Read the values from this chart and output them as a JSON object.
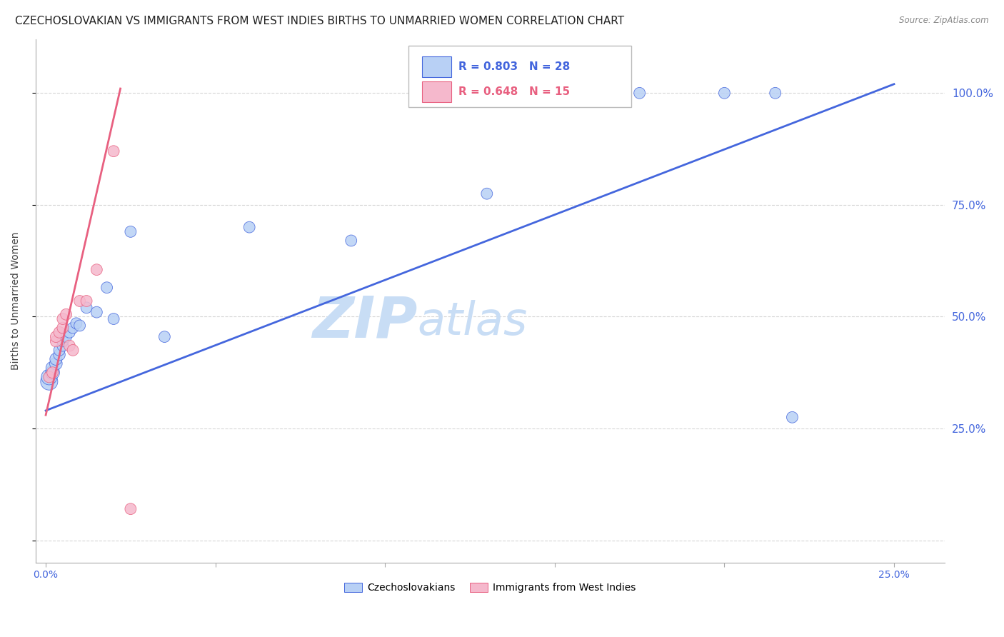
{
  "title": "CZECHOSLOVAKIAN VS IMMIGRANTS FROM WEST INDIES BIRTHS TO UNMARRIED WOMEN CORRELATION CHART",
  "source": "Source: ZipAtlas.com",
  "ylabel": "Births to Unmarried Women",
  "x_ticks": [
    0.0,
    0.05,
    0.1,
    0.15,
    0.2,
    0.25
  ],
  "x_tick_labels": [
    "0.0%",
    "",
    "",
    "",
    "",
    "25.0%"
  ],
  "y_ticks": [
    0.0,
    0.25,
    0.5,
    0.75,
    1.0
  ],
  "y_tick_labels_right": [
    "",
    "25.0%",
    "50.0%",
    "75.0%",
    "100.0%"
  ],
  "xlim": [
    -0.003,
    0.265
  ],
  "ylim": [
    -0.05,
    1.12
  ],
  "blue_color": "#b8d0f5",
  "pink_color": "#f5b8cc",
  "blue_line_color": "#4466dd",
  "pink_line_color": "#e86080",
  "legend_blue_R": "R = 0.803",
  "legend_blue_N": "N = 28",
  "legend_pink_R": "R = 0.648",
  "legend_pink_N": "N = 15",
  "watermark_zip": "ZIP",
  "watermark_atlas": "atlas",
  "watermark_color": "#c8ddf5",
  "legend_label_blue": "Czechoslovakians",
  "legend_label_pink": "Immigrants from West Indies",
  "blue_scatter_x": [
    0.001,
    0.001,
    0.002,
    0.002,
    0.003,
    0.003,
    0.004,
    0.004,
    0.005,
    0.005,
    0.006,
    0.007,
    0.008,
    0.009,
    0.01,
    0.012,
    0.015,
    0.018,
    0.02,
    0.025,
    0.035,
    0.06,
    0.09,
    0.13,
    0.175,
    0.2,
    0.215,
    0.22
  ],
  "blue_scatter_y": [
    0.355,
    0.365,
    0.375,
    0.385,
    0.395,
    0.405,
    0.415,
    0.425,
    0.435,
    0.445,
    0.455,
    0.465,
    0.475,
    0.485,
    0.48,
    0.52,
    0.51,
    0.565,
    0.495,
    0.69,
    0.455,
    0.7,
    0.67,
    0.775,
    1.0,
    1.0,
    1.0,
    0.275
  ],
  "blue_scatter_sizes": [
    300,
    250,
    200,
    180,
    160,
    150,
    140,
    130,
    130,
    130,
    130,
    130,
    130,
    130,
    130,
    130,
    130,
    130,
    130,
    130,
    130,
    130,
    130,
    130,
    130,
    130,
    130,
    130
  ],
  "pink_scatter_x": [
    0.001,
    0.002,
    0.003,
    0.003,
    0.004,
    0.005,
    0.005,
    0.006,
    0.007,
    0.008,
    0.01,
    0.012,
    0.015,
    0.02,
    0.025
  ],
  "pink_scatter_y": [
    0.365,
    0.375,
    0.445,
    0.455,
    0.465,
    0.475,
    0.495,
    0.505,
    0.435,
    0.425,
    0.535,
    0.535,
    0.605,
    0.87,
    0.07
  ],
  "pink_scatter_sizes": [
    130,
    130,
    130,
    130,
    130,
    130,
    130,
    130,
    130,
    130,
    130,
    130,
    130,
    130,
    130
  ],
  "blue_line_x0": 0.0,
  "blue_line_x1": 0.25,
  "blue_line_y0": 0.29,
  "blue_line_y1": 1.02,
  "pink_line_x0": 0.0,
  "pink_line_x1": 0.022,
  "pink_line_y0": 0.28,
  "pink_line_y1": 1.01,
  "grid_color": "#cccccc",
  "background_color": "#ffffff",
  "title_fontsize": 11,
  "axis_label_fontsize": 10,
  "tick_fontsize": 10,
  "legend_fontsize": 11
}
